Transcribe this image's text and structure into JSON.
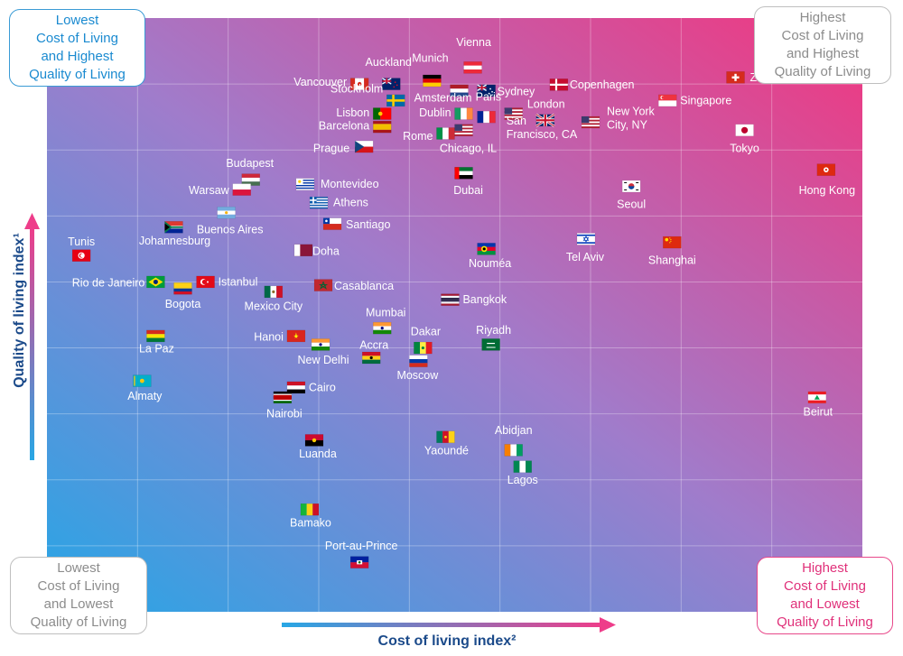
{
  "corners": {
    "top_left": [
      "Lowest",
      "Cost of Living",
      "and Highest",
      "Quality of Living"
    ],
    "top_right": [
      "Highest",
      "Cost of Living",
      "and Highest",
      "Quality of Living"
    ],
    "bottom_left": [
      "Lowest",
      "Cost of Living",
      "and Lowest",
      "Quality of Living"
    ],
    "bottom_right": [
      "Highest",
      "Cost of Living",
      "and Lowest",
      "Quality of Living"
    ]
  },
  "colors": {
    "blue": "#2aa3e3",
    "pink": "#ee3d8a",
    "purple": "#9a7cc8",
    "axis_text": "#1b4a8a"
  },
  "chart_data": {
    "type": "scatter",
    "title": "",
    "xlabel": "Cost of living index²",
    "ylabel": "Quality of living index¹",
    "grid": true,
    "xlim": [
      0,
      9
    ],
    "ylim": [
      0,
      9
    ],
    "points": [
      {
        "label": "Auckland",
        "x": 3.8,
        "y": 8.0,
        "flag": "nz"
      },
      {
        "label": "Munich",
        "x": 4.25,
        "y": 8.05,
        "flag": "de"
      },
      {
        "label": "Vienna",
        "x": 4.7,
        "y": 8.25,
        "flag": "at"
      },
      {
        "label": "Vancouver",
        "x": 3.45,
        "y": 8.0,
        "flag": "ca"
      },
      {
        "label": "Amsterdam",
        "x": 4.55,
        "y": 7.9,
        "flag": "nl"
      },
      {
        "label": "Sydney",
        "x": 4.85,
        "y": 7.9,
        "flag": "au"
      },
      {
        "label": "Copenhagen",
        "x": 5.65,
        "y": 7.99,
        "flag": "dk"
      },
      {
        "label": "Zurich",
        "x": 7.6,
        "y": 8.1,
        "flag": "ch"
      },
      {
        "label": "Stockholm",
        "x": 3.85,
        "y": 7.75,
        "flag": "se"
      },
      {
        "label": "Paris",
        "x": 4.85,
        "y": 7.5,
        "flag": "fr"
      },
      {
        "label": "London",
        "x": 5.5,
        "y": 7.45,
        "flag": "gb"
      },
      {
        "label": "Singapore",
        "x": 6.85,
        "y": 7.75,
        "flag": "sg"
      },
      {
        "label": "Lisbon",
        "x": 3.7,
        "y": 7.55,
        "flag": "pt"
      },
      {
        "label": "Dublin",
        "x": 4.6,
        "y": 7.55,
        "flag": "ie"
      },
      {
        "label": "San Francisco, CA",
        "x": 5.15,
        "y": 7.55,
        "flag": "us"
      },
      {
        "label": "New York City, NY",
        "x": 6.0,
        "y": 7.42,
        "flag": "us"
      },
      {
        "label": "Barcelona",
        "x": 3.7,
        "y": 7.35,
        "flag": "es"
      },
      {
        "label": "Rome",
        "x": 4.4,
        "y": 7.25,
        "flag": "it"
      },
      {
        "label": "Chicago, IL",
        "x": 4.6,
        "y": 7.3,
        "flag": "us"
      },
      {
        "label": "Tokyo",
        "x": 7.7,
        "y": 7.3,
        "flag": "jp"
      },
      {
        "label": "Prague",
        "x": 3.5,
        "y": 7.05,
        "flag": "cz"
      },
      {
        "label": "Budapest",
        "x": 2.25,
        "y": 6.55,
        "flag": "hu"
      },
      {
        "label": "Dubai",
        "x": 4.6,
        "y": 6.65,
        "flag": "ae"
      },
      {
        "label": "Hong Kong",
        "x": 8.6,
        "y": 6.7,
        "flag": "hk"
      },
      {
        "label": "Warsaw",
        "x": 2.15,
        "y": 6.4,
        "flag": "pl"
      },
      {
        "label": "Montevideo",
        "x": 2.85,
        "y": 6.48,
        "flag": "uy"
      },
      {
        "label": "Seoul",
        "x": 6.45,
        "y": 6.45,
        "flag": "kr"
      },
      {
        "label": "Athens",
        "x": 3.0,
        "y": 6.2,
        "flag": "gr"
      },
      {
        "label": "Buenos Aires",
        "x": 1.98,
        "y": 6.05,
        "flag": "ar"
      },
      {
        "label": "Johannesburg",
        "x": 1.4,
        "y": 5.83,
        "flag": "za"
      },
      {
        "label": "Santiago",
        "x": 3.15,
        "y": 5.88,
        "flag": "cl"
      },
      {
        "label": "Tunis",
        "x": 0.38,
        "y": 5.4,
        "flag": "tn"
      },
      {
        "label": "Tel Aviv",
        "x": 5.95,
        "y": 5.65,
        "flag": "il"
      },
      {
        "label": "Shanghai",
        "x": 6.9,
        "y": 5.6,
        "flag": "cn"
      },
      {
        "label": "Nouméa",
        "x": 4.85,
        "y": 5.5,
        "flag": "nc"
      },
      {
        "label": "Doha",
        "x": 2.83,
        "y": 5.48,
        "flag": "qa"
      },
      {
        "label": "Rio de Janeiro",
        "x": 1.2,
        "y": 5.0,
        "flag": "br"
      },
      {
        "label": "Istanbul",
        "x": 1.75,
        "y": 5.0,
        "flag": "tr"
      },
      {
        "label": "Bogota",
        "x": 1.5,
        "y": 4.9,
        "flag": "co"
      },
      {
        "label": "Casablanca",
        "x": 3.05,
        "y": 4.95,
        "flag": "ma"
      },
      {
        "label": "Mexico City",
        "x": 2.5,
        "y": 4.85,
        "flag": "mx"
      },
      {
        "label": "Bangkok",
        "x": 4.45,
        "y": 4.73,
        "flag": "th"
      },
      {
        "label": "Mumbai",
        "x": 3.7,
        "y": 4.3,
        "flag": "in"
      },
      {
        "label": "Hanoi",
        "x": 2.75,
        "y": 4.18,
        "flag": "vn"
      },
      {
        "label": "Riyadh",
        "x": 4.9,
        "y": 4.05,
        "flag": "sa"
      },
      {
        "label": "La Paz",
        "x": 1.2,
        "y": 4.18,
        "flag": "bo"
      },
      {
        "label": "Dakar",
        "x": 4.15,
        "y": 4.0,
        "flag": "sn"
      },
      {
        "label": "New Delhi",
        "x": 3.02,
        "y": 4.05,
        "flag": "in"
      },
      {
        "label": "Accra",
        "x": 3.58,
        "y": 3.85,
        "flag": "gh"
      },
      {
        "label": "Moscow",
        "x": 4.1,
        "y": 3.8,
        "flag": "ru"
      },
      {
        "label": "Almaty",
        "x": 1.05,
        "y": 3.5,
        "flag": "kz"
      },
      {
        "label": "Cairo",
        "x": 2.75,
        "y": 3.4,
        "flag": "eg"
      },
      {
        "label": "Nairobi",
        "x": 2.6,
        "y": 3.25,
        "flag": "ke"
      },
      {
        "label": "Beirut",
        "x": 8.5,
        "y": 3.25,
        "flag": "lb"
      },
      {
        "label": "Luanda",
        "x": 2.95,
        "y": 2.6,
        "flag": "ao"
      },
      {
        "label": "Yaoundé",
        "x": 4.4,
        "y": 2.65,
        "flag": "cm"
      },
      {
        "label": "Abidjan",
        "x": 5.15,
        "y": 2.45,
        "flag": "ci"
      },
      {
        "label": "Lagos",
        "x": 5.25,
        "y": 2.2,
        "flag": "ng"
      },
      {
        "label": "Bamako",
        "x": 2.9,
        "y": 1.55,
        "flag": "ml"
      },
      {
        "label": "Port-au-Prince",
        "x": 3.45,
        "y": 0.75,
        "flag": "ht"
      }
    ]
  }
}
